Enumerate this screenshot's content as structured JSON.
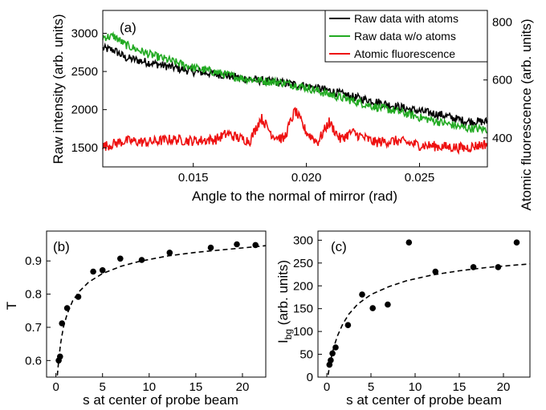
{
  "chart_data": [
    {
      "type": "line",
      "panel_label": "(a)",
      "xlabel": "Angle to the normal of mirror (rad)",
      "ylabel": "Raw intensity (arb. units)",
      "y2label": "Atomic fluorescence (arb. units)",
      "xlim": [
        0.011,
        0.028
      ],
      "ylim": [
        1250,
        3300
      ],
      "y2lim": [
        300,
        840
      ],
      "xticks": [
        0.015,
        0.02,
        0.025
      ],
      "xtick_labels": [
        "0.015",
        "0.020",
        "0.025"
      ],
      "yticks": [
        1500,
        2000,
        2500,
        3000
      ],
      "y2ticks": [
        400,
        600,
        800
      ],
      "legend_position": "top-right",
      "series": [
        {
          "name": "Raw data with atoms",
          "color": "#000000",
          "axis": "left",
          "x": [
            0.011,
            0.0115,
            0.012,
            0.013,
            0.014,
            0.015,
            0.016,
            0.017,
            0.018,
            0.019,
            0.02,
            0.021,
            0.022,
            0.023,
            0.024,
            0.025,
            0.026,
            0.027,
            0.028
          ],
          "values": [
            2800,
            2780,
            2680,
            2620,
            2560,
            2500,
            2470,
            2420,
            2380,
            2350,
            2310,
            2250,
            2170,
            2110,
            2040,
            1980,
            1930,
            1850,
            1840
          ]
        },
        {
          "name": "Raw data w/o atoms",
          "color": "#22aa22",
          "axis": "left",
          "x": [
            0.011,
            0.0115,
            0.012,
            0.013,
            0.014,
            0.015,
            0.016,
            0.017,
            0.018,
            0.019,
            0.02,
            0.021,
            0.022,
            0.023,
            0.024,
            0.025,
            0.026,
            0.027,
            0.028
          ],
          "values": [
            2950,
            2960,
            2850,
            2730,
            2640,
            2550,
            2490,
            2420,
            2380,
            2350,
            2290,
            2200,
            2120,
            2040,
            1980,
            1900,
            1830,
            1760,
            1740
          ]
        },
        {
          "name": "Atomic fluorescence",
          "color": "#ee1111",
          "axis": "right",
          "x": [
            0.011,
            0.012,
            0.013,
            0.014,
            0.015,
            0.016,
            0.0165,
            0.017,
            0.0175,
            0.018,
            0.0185,
            0.019,
            0.0195,
            0.02,
            0.0205,
            0.021,
            0.0215,
            0.022,
            0.023,
            0.024,
            0.025,
            0.026,
            0.027,
            0.028
          ],
          "values": [
            370,
            390,
            385,
            395,
            390,
            395,
            415,
            400,
            390,
            470,
            410,
            395,
            495,
            420,
            385,
            455,
            395,
            420,
            385,
            390,
            375,
            370,
            365,
            380
          ]
        }
      ]
    },
    {
      "type": "scatter",
      "panel_label": "(b)",
      "xlabel": "s at center of probe beam",
      "ylabel": "T",
      "xlim": [
        -1,
        22.5
      ],
      "ylim": [
        0.55,
        0.99
      ],
      "xticks": [
        0,
        5,
        10,
        15,
        20
      ],
      "yticks": [
        0.6,
        0.7,
        0.8,
        0.9
      ],
      "series": [
        {
          "name": "",
          "x": [
            0.3,
            0.45,
            0.65,
            1.2,
            2.4,
            4.0,
            5.0,
            6.9,
            9.2,
            12.2,
            16.6,
            19.4,
            21.4
          ],
          "values": [
            0.6,
            0.612,
            0.712,
            0.758,
            0.792,
            0.868,
            0.872,
            0.907,
            0.903,
            0.925,
            0.94,
            0.95,
            0.948
          ]
        },
        {
          "name": "",
          "style": "dashed",
          "x": [
            0.15,
            0.3,
            0.5,
            0.8,
            1.2,
            1.8,
            2.5,
            3.5,
            5,
            7,
            9,
            12,
            15,
            18,
            21,
            22.5
          ],
          "values": [
            0.555,
            0.6,
            0.65,
            0.7,
            0.74,
            0.78,
            0.808,
            0.836,
            0.862,
            0.884,
            0.899,
            0.915,
            0.926,
            0.934,
            0.942,
            0.946
          ]
        }
      ]
    },
    {
      "type": "scatter",
      "panel_label": "(c)",
      "xlabel": "s at center of probe beam",
      "ylabel_main": "I",
      "ylabel_sub": "bg",
      "ylabel_rest": " (arb. units)",
      "xlim": [
        -1,
        23
      ],
      "ylim": [
        0,
        320
      ],
      "xticks": [
        0,
        5,
        10,
        15,
        20
      ],
      "yticks": [
        0,
        50,
        100,
        150,
        200,
        250,
        300
      ],
      "series": [
        {
          "name": "",
          "x": [
            0.3,
            0.45,
            0.65,
            1.0,
            2.4,
            4.0,
            5.2,
            6.9,
            9.3,
            12.3,
            16.6,
            19.4,
            21.5
          ],
          "values": [
            27,
            37,
            52,
            65,
            114,
            181,
            151,
            159,
            295,
            231,
            241,
            241,
            295
          ]
        },
        {
          "name": "",
          "style": "dashed",
          "x": [
            0.15,
            0.3,
            0.5,
            0.8,
            1.2,
            1.8,
            2.5,
            3.5,
            5,
            7,
            9,
            12,
            15,
            18,
            21,
            23
          ],
          "values": [
            5,
            22,
            42,
            66,
            90,
            116,
            138,
            160,
            181,
            198,
            211,
            224,
            233,
            240,
            245,
            248
          ]
        }
      ]
    }
  ]
}
